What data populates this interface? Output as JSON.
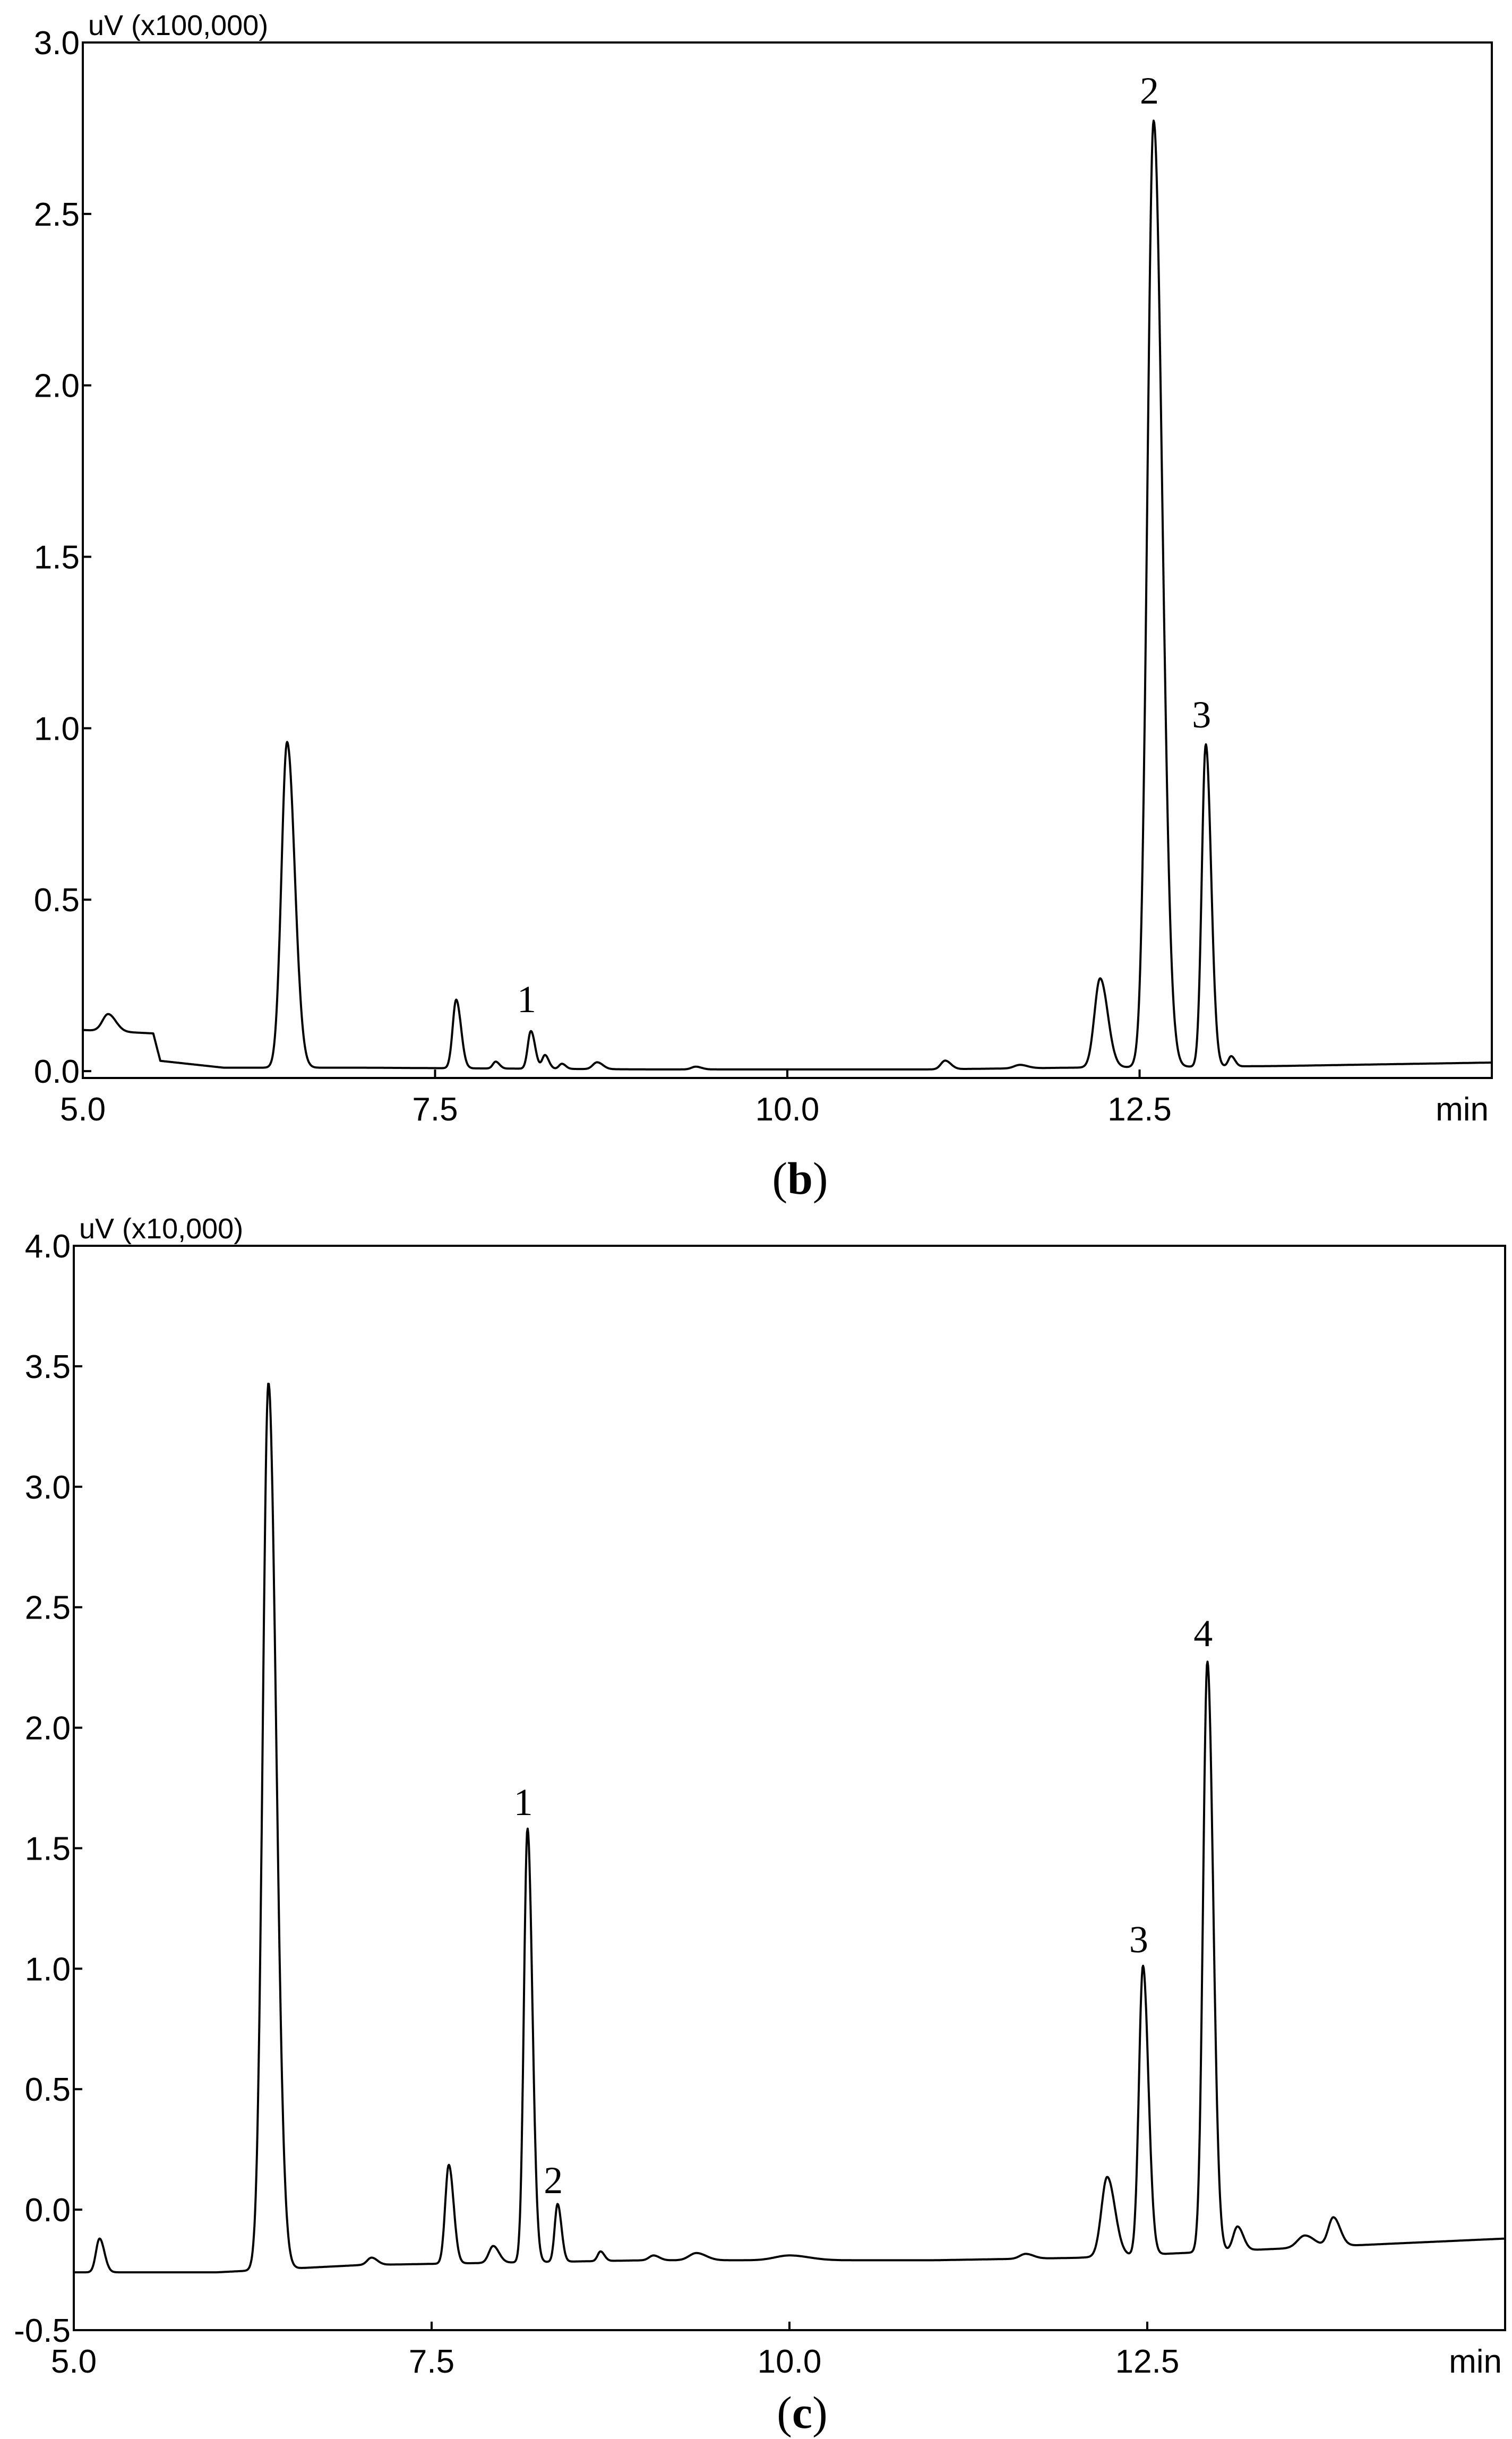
{
  "chart_data": [
    {
      "type": "line",
      "caption_letter": "b",
      "y_unit_label": "uV (x100,000)",
      "x_unit_label": "min",
      "xlim": [
        5.0,
        15.0
      ],
      "ylim": [
        -0.02,
        3.0
      ],
      "x_ticks": [
        5.0,
        7.5,
        10.0,
        12.5
      ],
      "x_tick_labels": [
        "5.0",
        "7.5",
        "10.0",
        "12.5"
      ],
      "y_ticks": [
        0.0,
        0.5,
        1.0,
        1.5,
        2.0,
        2.5,
        3.0
      ],
      "y_tick_labels": [
        "0.0",
        "0.5",
        "1.0",
        "1.5",
        "2.0",
        "2.5",
        "3.0"
      ],
      "grid": false,
      "baseline": [
        [
          5.0,
          0.12
        ],
        [
          5.5,
          0.11
        ],
        [
          5.55,
          0.03
        ],
        [
          6.0,
          0.01
        ],
        [
          7.0,
          0.01
        ],
        [
          9.0,
          0.005
        ],
        [
          11.0,
          0.005
        ],
        [
          12.0,
          0.01
        ],
        [
          13.5,
          0.015
        ],
        [
          15.0,
          0.025
        ]
      ],
      "peaks": [
        {
          "x": 5.18,
          "height": 0.05,
          "width": 0.04
        },
        {
          "x": 6.45,
          "height": 0.95,
          "width": 0.04
        },
        {
          "x": 7.65,
          "height": 0.2,
          "width": 0.025
        },
        {
          "x": 7.93,
          "height": 0.02,
          "width": 0.02
        },
        {
          "x": 8.18,
          "height": 0.11,
          "width": 0.022
        },
        {
          "x": 8.28,
          "height": 0.04,
          "width": 0.02
        },
        {
          "x": 8.4,
          "height": 0.015,
          "width": 0.02
        },
        {
          "x": 8.65,
          "height": 0.02,
          "width": 0.03
        },
        {
          "x": 9.35,
          "height": 0.008,
          "width": 0.03
        },
        {
          "x": 11.12,
          "height": 0.025,
          "width": 0.03
        },
        {
          "x": 11.65,
          "height": 0.01,
          "width": 0.04
        },
        {
          "x": 12.22,
          "height": 0.26,
          "width": 0.04
        },
        {
          "x": 12.6,
          "height": 2.76,
          "width": 0.045
        },
        {
          "x": 12.97,
          "height": 0.94,
          "width": 0.028
        },
        {
          "x": 13.15,
          "height": 0.03,
          "width": 0.02
        }
      ],
      "peak_labels": [
        {
          "label": "1",
          "x": 8.18,
          "y": 0.11
        },
        {
          "label": "2",
          "x": 12.6,
          "y": 2.76
        },
        {
          "label": "3",
          "x": 12.97,
          "y": 0.94
        }
      ]
    },
    {
      "type": "line",
      "caption_letter": "c",
      "y_unit_label": "uV (x10,000)",
      "x_unit_label": "min",
      "xlim": [
        5.0,
        15.0
      ],
      "ylim": [
        -0.5,
        4.0
      ],
      "x_ticks": [
        5.0,
        7.5,
        10.0,
        12.5
      ],
      "x_tick_labels": [
        "5.0",
        "7.5",
        "10.0",
        "12.5"
      ],
      "y_ticks": [
        -0.5,
        0.0,
        0.5,
        1.0,
        1.5,
        2.0,
        2.5,
        3.0,
        3.5,
        4.0
      ],
      "y_tick_labels": [
        "-0.5",
        "0.0",
        "0.5",
        "1.0",
        "1.5",
        "2.0",
        "2.5",
        "3.0",
        "3.5",
        "4.0"
      ],
      "grid": false,
      "baseline": [
        [
          5.0,
          -0.26
        ],
        [
          6.0,
          -0.26
        ],
        [
          7.0,
          -0.23
        ],
        [
          9.0,
          -0.21
        ],
        [
          11.0,
          -0.21
        ],
        [
          12.0,
          -0.2
        ],
        [
          13.5,
          -0.16
        ],
        [
          15.0,
          -0.12
        ]
      ],
      "peaks": [
        {
          "x": 5.18,
          "height": 0.14,
          "width": 0.025
        },
        {
          "x": 6.36,
          "height": 3.68,
          "width": 0.04
        },
        {
          "x": 7.08,
          "height": 0.03,
          "width": 0.03
        },
        {
          "x": 7.62,
          "height": 0.41,
          "width": 0.025
        },
        {
          "x": 7.93,
          "height": 0.07,
          "width": 0.03
        },
        {
          "x": 8.17,
          "height": 1.8,
          "width": 0.025
        },
        {
          "x": 8.38,
          "height": 0.24,
          "width": 0.02
        },
        {
          "x": 8.68,
          "height": 0.04,
          "width": 0.02
        },
        {
          "x": 9.05,
          "height": 0.02,
          "width": 0.03
        },
        {
          "x": 9.35,
          "height": 0.03,
          "width": 0.05
        },
        {
          "x": 10.0,
          "height": 0.02,
          "width": 0.1
        },
        {
          "x": 11.65,
          "height": 0.02,
          "width": 0.04
        },
        {
          "x": 12.22,
          "height": 0.33,
          "width": 0.04
        },
        {
          "x": 12.47,
          "height": 1.2,
          "width": 0.028
        },
        {
          "x": 12.92,
          "height": 2.45,
          "width": 0.03
        },
        {
          "x": 13.13,
          "height": 0.1,
          "width": 0.03
        },
        {
          "x": 13.6,
          "height": 0.05,
          "width": 0.05
        },
        {
          "x": 13.8,
          "height": 0.12,
          "width": 0.035
        }
      ],
      "peak_labels": [
        {
          "label": "1",
          "x": 8.17,
          "y": 1.55
        },
        {
          "label": "2",
          "x": 8.38,
          "y": -0.02
        },
        {
          "label": "3",
          "x": 12.47,
          "y": 0.98
        },
        {
          "label": "4",
          "x": 12.92,
          "y": 2.25
        }
      ]
    }
  ]
}
